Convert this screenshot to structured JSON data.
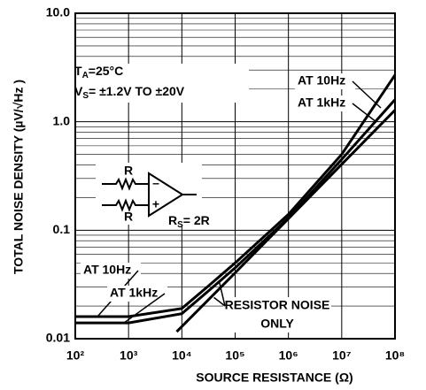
{
  "chart_data": {
    "type": "line",
    "xlabel": "SOURCE RESISTANCE (Ω)",
    "ylabel": "TOTAL NOISE DENSITY (µV/√Hz )",
    "xscale": "log",
    "yscale": "log",
    "xlim": [
      100,
      100000000
    ],
    "ylim": [
      0.01,
      10
    ],
    "xticks": [
      {
        "value": 100,
        "label": "10²"
      },
      {
        "value": 1000,
        "label": "10³"
      },
      {
        "value": 10000,
        "label": "10⁴"
      },
      {
        "value": 100000,
        "label": "10⁵"
      },
      {
        "value": 1000000,
        "label": "10⁶"
      },
      {
        "value": 10000000,
        "label": "10⁷"
      },
      {
        "value": 100000000,
        "label": "10⁸"
      }
    ],
    "yticks": [
      {
        "value": 10,
        "label": "10.0"
      },
      {
        "value": 1,
        "label": "1.0"
      },
      0.1,
      0.01
    ],
    "grid": true,
    "minor_grid": true,
    "series": [
      {
        "name": "AT 10Hz",
        "color": "#000000",
        "x": [
          100,
          1000,
          10000,
          30000,
          100000,
          1000000,
          10000000,
          100000000
        ],
        "values": [
          0.016,
          0.016,
          0.019,
          0.03,
          0.05,
          0.14,
          0.5,
          2.7
        ]
      },
      {
        "name": "AT 1kHz",
        "color": "#000000",
        "x": [
          100,
          1000,
          10000,
          30000,
          100000,
          1000000,
          10000000,
          100000000
        ],
        "values": [
          0.014,
          0.014,
          0.017,
          0.027,
          0.045,
          0.13,
          0.45,
          1.6
        ]
      },
      {
        "label_lines": [
          "RESISTOR NOISE",
          "ONLY"
        ],
        "color": "#000000",
        "x": [
          8000,
          100000,
          1000000,
          10000000,
          100000000
        ],
        "values": [
          0.0116,
          0.0405,
          0.128,
          0.405,
          1.28
        ]
      }
    ],
    "annotations": {
      "ta": [
        "T",
        "A",
        "=25°C"
      ],
      "vs": [
        "V",
        "S",
        "= ±1.2V TO ±20V"
      ],
      "amp": {
        "r1": "R",
        "r2": "R",
        "minus": "–",
        "plus": "+",
        "rs": [
          "R",
          "S",
          "= 2R"
        ]
      }
    }
  }
}
